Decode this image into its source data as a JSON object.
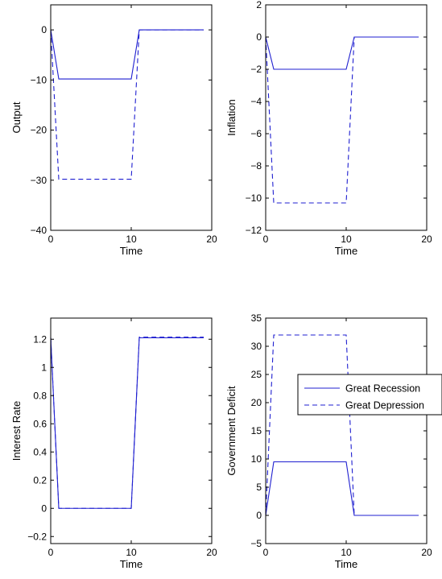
{
  "figure": {
    "legend": {
      "entries": [
        {
          "label": "Great Recession",
          "style": "solid"
        },
        {
          "label": "Great Depression",
          "style": "dashed"
        }
      ]
    }
  },
  "colors": {
    "series": "#1f1fd0",
    "axes": "#000000",
    "background": "#ffffff"
  },
  "chart_data": [
    {
      "type": "line",
      "title": "",
      "xlabel": "Time",
      "ylabel": "Output",
      "xlim": [
        0,
        20
      ],
      "ylim": [
        -40,
        5
      ],
      "xticks": [
        0,
        10,
        20
      ],
      "yticks": [
        0,
        -10,
        -20,
        -30,
        -40
      ],
      "ytick_labels": [
        "0",
        "−10",
        "−20",
        "−30",
        "−40"
      ],
      "grid": false,
      "series": [
        {
          "name": "Great Recession",
          "style": "solid",
          "x": [
            0,
            1,
            10,
            11,
            19
          ],
          "values": [
            0,
            -9.8,
            -9.8,
            0,
            0
          ]
        },
        {
          "name": "Great Depression",
          "style": "dashed",
          "x": [
            0,
            1,
            10,
            11,
            19
          ],
          "values": [
            0,
            -29.8,
            -29.8,
            0,
            0
          ]
        }
      ]
    },
    {
      "type": "line",
      "title": "",
      "xlabel": "Time",
      "ylabel": "Inflation",
      "xlim": [
        0,
        20
      ],
      "ylim": [
        -12,
        2
      ],
      "xticks": [
        0,
        10,
        20
      ],
      "yticks": [
        2,
        0,
        -2,
        -4,
        -6,
        -8,
        -10,
        -12
      ],
      "ytick_labels": [
        "2",
        "0",
        "−2",
        "−4",
        "−6",
        "−8",
        "−10",
        "−12"
      ],
      "grid": false,
      "series": [
        {
          "name": "Great Recession",
          "style": "solid",
          "x": [
            0,
            1,
            10,
            11,
            19
          ],
          "values": [
            0,
            -2,
            -2,
            0,
            0
          ]
        },
        {
          "name": "Great Depression",
          "style": "dashed",
          "x": [
            0,
            1,
            10,
            11,
            19
          ],
          "values": [
            0,
            -10.3,
            -10.3,
            0,
            0
          ]
        }
      ]
    },
    {
      "type": "line",
      "title": "",
      "xlabel": "Time",
      "ylabel": "Interest Rate",
      "xlim": [
        0,
        20
      ],
      "ylim": [
        -0.25,
        1.35
      ],
      "xticks": [
        0,
        10,
        20
      ],
      "yticks": [
        1.2,
        1,
        0.8,
        0.6,
        0.4,
        0.2,
        0,
        -0.2
      ],
      "ytick_labels": [
        "1.2",
        "1",
        "0.8",
        "0.6",
        "0.4",
        "0.2",
        "0",
        "−0.2"
      ],
      "grid": false,
      "series": [
        {
          "name": "Great Recession",
          "style": "solid",
          "x": [
            0,
            1,
            10,
            11,
            19
          ],
          "values": [
            1.21,
            0,
            0,
            1.21,
            1.21
          ]
        },
        {
          "name": "Great Depression",
          "style": "dashed",
          "x": [
            0,
            1,
            10,
            11,
            19
          ],
          "values": [
            1.21,
            0,
            0,
            1.215,
            1.215
          ]
        }
      ]
    },
    {
      "type": "line",
      "title": "",
      "xlabel": "Time",
      "ylabel": "Government Deficit",
      "xlim": [
        0,
        20
      ],
      "ylim": [
        -5,
        35
      ],
      "xticks": [
        0,
        10,
        20
      ],
      "yticks": [
        35,
        30,
        25,
        20,
        15,
        10,
        5,
        0,
        -5
      ],
      "ytick_labels": [
        "35",
        "30",
        "25",
        "20",
        "15",
        "10",
        "5",
        "0",
        "−5"
      ],
      "grid": false,
      "legend": "right",
      "series": [
        {
          "name": "Great Recession",
          "style": "solid",
          "x": [
            0,
            1,
            10,
            11,
            19
          ],
          "values": [
            0,
            9.5,
            9.5,
            0,
            0
          ]
        },
        {
          "name": "Great Depression",
          "style": "dashed",
          "x": [
            0,
            1,
            10,
            11,
            19
          ],
          "values": [
            0,
            32,
            32,
            0,
            0
          ]
        }
      ]
    }
  ]
}
